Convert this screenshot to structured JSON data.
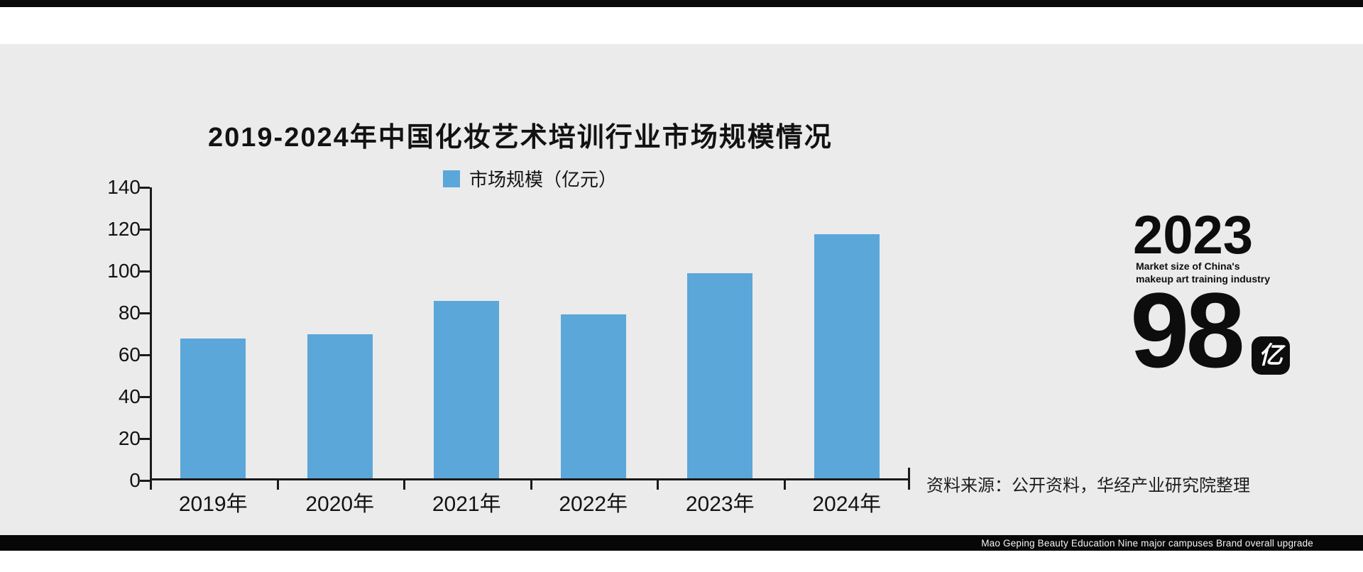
{
  "page": {
    "background": "#ffffff",
    "canvas_background": "#ebebeb",
    "top_bar_color": "#0a0a0a",
    "footer_bar_color": "#070707"
  },
  "chart_data": {
    "type": "bar",
    "title": "2019-2024年中国化妆艺术培训行业市场规模情况",
    "legend": [
      {
        "label": "市场规模（亿元）",
        "color": "#5ba7d9"
      }
    ],
    "legend_position": "top-center",
    "categories": [
      "2019年",
      "2020年",
      "2021年",
      "2022年",
      "2023年",
      "2024年"
    ],
    "values": [
      66.9,
      68.8,
      84.7,
      78.3,
      98,
      116.5
    ],
    "xlabel": "",
    "ylabel": "",
    "unit": "亿元",
    "ylim": [
      0,
      140
    ],
    "yticks": [
      0,
      20,
      40,
      60,
      80,
      100,
      120,
      140
    ],
    "grid": false,
    "bar_color": "#5ba7d9",
    "axis_color": "#1a1a1a"
  },
  "callout": {
    "year": "2023",
    "caption_line1": "Market size of China's",
    "caption_line2": "makeup art training industry",
    "value": "98",
    "unit": "亿"
  },
  "source_note": "资料来源：公开资料，华经产业研究院整理",
  "footer": {
    "text": "Mao Geping Beauty Education Nine major campuses Brand overall upgrade"
  }
}
